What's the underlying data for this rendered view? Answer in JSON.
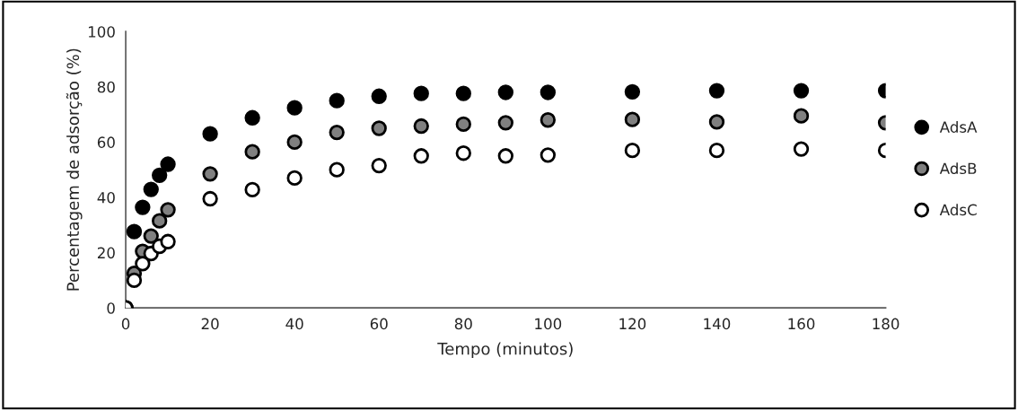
{
  "chart_data": {
    "type": "scatter",
    "xlabel": "Tempo (minutos)",
    "ylabel": "Percentagem de adsorção (%)",
    "x": [
      0,
      2,
      4,
      6,
      8,
      10,
      20,
      30,
      40,
      50,
      60,
      70,
      80,
      90,
      100,
      120,
      140,
      160,
      180
    ],
    "xlim": [
      0,
      180
    ],
    "xticks": [
      0,
      20,
      40,
      60,
      80,
      100,
      120,
      140,
      160,
      180
    ],
    "ylim": [
      0,
      100
    ],
    "yticks": [
      0,
      20,
      40,
      60,
      80,
      100
    ],
    "grid": false,
    "legend": "right",
    "marker": "circle",
    "series": [
      {
        "name": "AdsA",
        "color": "#000000",
        "values": [
          0,
          27.6,
          36.4,
          42.9,
          48,
          52,
          63,
          68.8,
          72.4,
          75,
          76.6,
          77.6,
          77.6,
          78,
          78,
          78.2,
          78.6,
          78.6,
          78.6
        ]
      },
      {
        "name": "AdsB",
        "color": "#808080",
        "values": [
          0,
          12.5,
          20.5,
          26,
          31.5,
          35.5,
          48.5,
          56.5,
          60,
          63.5,
          65,
          65.8,
          66.5,
          67,
          68,
          68.2,
          67.3,
          69.5,
          67
        ]
      },
      {
        "name": "AdsC",
        "color": "#ffffff",
        "values": [
          0,
          10,
          16,
          19.7,
          22.3,
          24,
          39.5,
          42.8,
          47,
          50,
          51.5,
          55,
          56,
          55,
          55.3,
          57,
          57,
          57.5,
          57
        ]
      }
    ]
  }
}
